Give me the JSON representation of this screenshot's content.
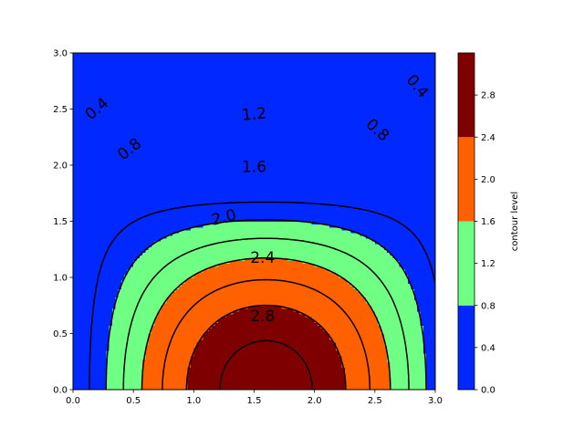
{
  "chart_data": {
    "type": "contour",
    "function": "z = 3*sin(x) + ... (filled contours of a dome peaking near x=1.6, y=0)",
    "x_range": [
      0.0,
      3.0
    ],
    "y_range": [
      0.0,
      3.0
    ],
    "x_ticks": [
      "0.0",
      "0.5",
      "1.0",
      "1.5",
      "2.0",
      "2.5",
      "3.0"
    ],
    "y_ticks": [
      "0.0",
      "0.5",
      "1.0",
      "1.5",
      "2.0",
      "2.5",
      "3.0"
    ],
    "fill_bands": [
      {
        "min": 0.0,
        "max": 0.8,
        "color": "#0028ff"
      },
      {
        "min": 0.8,
        "max": 1.6,
        "color": "#6fff84"
      },
      {
        "min": 1.6,
        "max": 2.4,
        "color": "#ff6000"
      },
      {
        "min": 2.4,
        "max": 3.2,
        "color": "#7f0000"
      }
    ],
    "line_levels": [
      0.4,
      0.8,
      1.2,
      1.6,
      2.0,
      2.4,
      2.8
    ],
    "line_labels": [
      "0.4",
      "0.8",
      "1.2",
      "1.6",
      "2.0",
      "2.4",
      "2.8"
    ],
    "colorbar": {
      "label": "contour level",
      "ticks": [
        "0.0",
        "0.4",
        "0.8",
        "1.2",
        "1.6",
        "2.0",
        "2.4",
        "2.8"
      ]
    }
  }
}
